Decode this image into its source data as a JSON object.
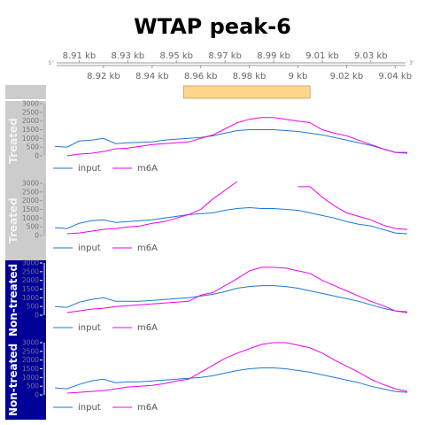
{
  "chart_data": {
    "type": "line",
    "title": "WTAP peak-6",
    "axis_top_ticks": [
      "8.91 kb",
      "8.93 kb",
      "8.95 kb",
      "8.97 kb",
      "8.99 kb",
      "9.01 kb",
      "9.03 kb"
    ],
    "axis_bottom_ticks": [
      "8.92 kb",
      "8.94 kb",
      "8.96 kb",
      "8.98 kb",
      "9 kb",
      "9.02 kb",
      "9.04 kb"
    ],
    "strand_left": "5'",
    "strand_right": "3'",
    "xlim_kb": [
      8.9,
      9.045
    ],
    "peak_region_kb": [
      8.953,
      9.005
    ],
    "peak_color": "#ffd68a",
    "colors": {
      "input": "#1f77d4",
      "m6A": "#ee00ee",
      "treated_strip": "#cccccc",
      "non_treated_strip": "#000099"
    },
    "ylim": [
      0,
      3000
    ],
    "y_ticks": [
      "3000",
      "2500",
      "2000",
      "1500",
      "1000",
      "500",
      "0"
    ],
    "x_kb": [
      8.9,
      8.905,
      8.91,
      8.915,
      8.92,
      8.925,
      8.93,
      8.935,
      8.94,
      8.945,
      8.95,
      8.955,
      8.96,
      8.965,
      8.97,
      8.975,
      8.98,
      8.985,
      8.99,
      8.995,
      9.0,
      9.005,
      9.01,
      9.015,
      9.02,
      9.025,
      9.03,
      9.035,
      9.04,
      9.045
    ],
    "panels": [
      {
        "label": "Treated",
        "series": [
          {
            "name": "input",
            "values": [
              550,
              500,
              850,
              900,
              1000,
              700,
              750,
              780,
              800,
              900,
              950,
              1000,
              1050,
              1150,
              1300,
              1450,
              1500,
              1500,
              1500,
              1450,
              1400,
              1300,
              1200,
              1050,
              900,
              750,
              600,
              400,
              200,
              150
            ]
          },
          {
            "name": "m6A",
            "values": [
              null,
              0,
              100,
              150,
              250,
              400,
              450,
              550,
              650,
              700,
              750,
              800,
              1000,
              1200,
              1550,
              1900,
              2100,
              2200,
              2200,
              2100,
              2000,
              1900,
              1500,
              1300,
              1150,
              900,
              650,
              400,
              200,
              200
            ]
          }
        ]
      },
      {
        "label": "Treated",
        "series": [
          {
            "name": "input",
            "values": [
              450,
              400,
              700,
              850,
              900,
              750,
              800,
              850,
              900,
              1000,
              1100,
              1200,
              1250,
              1300,
              1450,
              1550,
              1600,
              1550,
              1550,
              1500,
              1450,
              1300,
              1150,
              1000,
              800,
              650,
              550,
              350,
              150,
              100
            ]
          },
          {
            "name": "m6A",
            "values": [
              null,
              100,
              150,
              250,
              350,
              400,
              500,
              550,
              700,
              800,
              1000,
              1200,
              1500,
              2100,
              2600,
              3100,
              null,
              null,
              null,
              null,
              2800,
              2800,
              2200,
              1700,
              1300,
              1100,
              900,
              600,
              400,
              350
            ]
          }
        ]
      },
      {
        "label": "Non-treated",
        "series": [
          {
            "name": "input",
            "values": [
              500,
              450,
              750,
              900,
              1000,
              800,
              800,
              800,
              850,
              900,
              950,
              1000,
              1100,
              1200,
              1350,
              1550,
              1650,
              1700,
              1700,
              1650,
              1550,
              1400,
              1250,
              1100,
              950,
              800,
              600,
              400,
              250,
              200
            ]
          },
          {
            "name": "m6A",
            "values": [
              null,
              150,
              250,
              350,
              400,
              500,
              550,
              600,
              650,
              700,
              750,
              800,
              1150,
              1300,
              1700,
              2100,
              2550,
              2750,
              2750,
              2700,
              2550,
              2400,
              2000,
              1700,
              1400,
              1100,
              800,
              550,
              250,
              150
            ]
          }
        ]
      },
      {
        "label": "Non-treated",
        "series": [
          {
            "name": "input",
            "values": [
              400,
              350,
              600,
              800,
              900,
              700,
              750,
              750,
              800,
              850,
              900,
              950,
              1000,
              1100,
              1250,
              1400,
              1500,
              1550,
              1550,
              1500,
              1400,
              1300,
              1150,
              1000,
              850,
              700,
              500,
              350,
              200,
              150
            ]
          },
          {
            "name": "m6A",
            "values": [
              null,
              100,
              150,
              200,
              250,
              350,
              450,
              500,
              550,
              650,
              800,
              900,
              1300,
              1700,
              2100,
              2400,
              2650,
              2900,
              3000,
              3000,
              2850,
              2700,
              2400,
              2000,
              1650,
              1300,
              900,
              600,
              350,
              200
            ]
          }
        ]
      }
    ]
  }
}
